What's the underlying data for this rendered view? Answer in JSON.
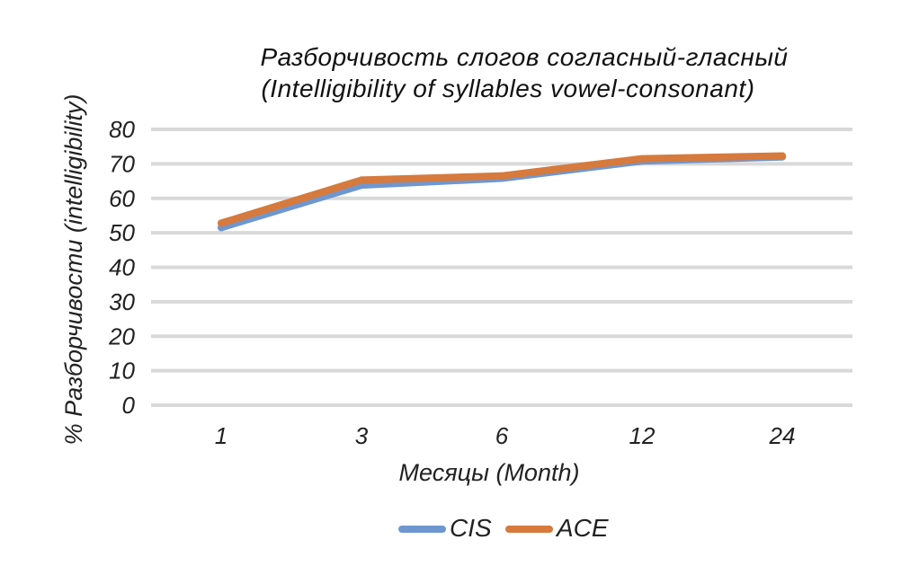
{
  "chart_data": {
    "type": "line",
    "title_line1": "Разборчивость слогов согласный-гласный",
    "title_line2": "(Intelligibility of syllables vowel-consonant)",
    "xlabel": "Месяцы (Month)",
    "ylabel": "% Разборчивости (intelligibility)",
    "categories": [
      "1",
      "3",
      "6",
      "12",
      "24"
    ],
    "ylim": [
      0,
      80
    ],
    "yticks": [
      "0",
      "10",
      "20",
      "30",
      "40",
      "50",
      "60",
      "70",
      "80"
    ],
    "grid": true,
    "legend_position": "bottom",
    "series": [
      {
        "name": "CIS",
        "color": "#6f97cf",
        "values": [
          51.5,
          63.8,
          65.8,
          70.8,
          72.0
        ]
      },
      {
        "name": "ACE",
        "color": "#d67a3d",
        "values": [
          52.8,
          65.3,
          66.5,
          71.5,
          72.3
        ]
      }
    ]
  }
}
